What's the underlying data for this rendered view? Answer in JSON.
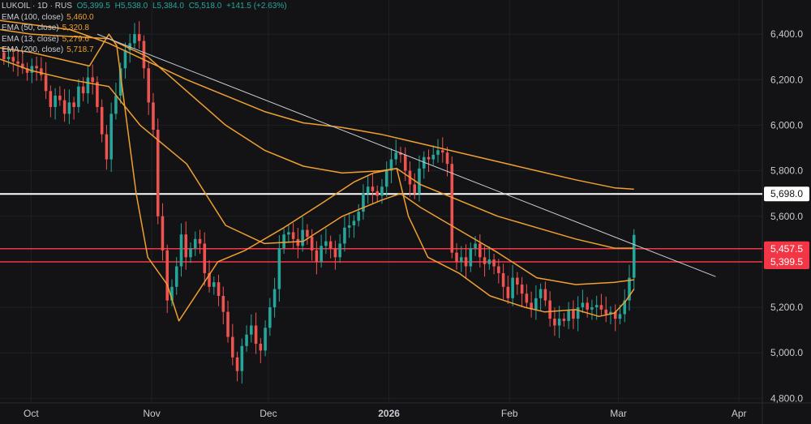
{
  "header": {
    "symbol_line": "LUKOIL · 1D · RUS",
    "open": "O5,399.5",
    "high": "H5,538.0",
    "low": "L5,384.0",
    "close": "C5,518.0",
    "change": "+141.5 (+2.63%)"
  },
  "indicators": [
    {
      "label": "EMA (100, close)",
      "value": "5,460.0",
      "color": "#f0a030"
    },
    {
      "label": "EMA (50, close)",
      "value": "5,320.8",
      "color": "#f0a030"
    },
    {
      "label": "EMA (13, close)",
      "value": "5,279.6",
      "color": "#f0a030"
    },
    {
      "label": "EMA (200, close)",
      "value": "5,718.7",
      "color": "#f0a030"
    }
  ],
  "colors": {
    "background": "#131316",
    "up": "#26a69a",
    "down": "#ef5350",
    "ema": "#f0a030",
    "level_line": "#ffffff",
    "red_level": "#f23645",
    "trendline": "#c8ccd6",
    "axis_text": "#c9cbd1"
  },
  "chart_data": {
    "type": "candlestick",
    "y_axis": {
      "ticks": [
        6400,
        6200,
        6000,
        5800,
        5600,
        5200,
        5000,
        4800
      ],
      "tick_labels": [
        "6,400.0",
        "6,200.0",
        "6,000.0",
        "5,800.0",
        "5,600.0",
        "5,200.0",
        "5,000.0",
        "4,800.0"
      ],
      "range": [
        4780,
        6550
      ]
    },
    "x_axis": {
      "labels": [
        "Oct",
        "Nov",
        "Dec",
        "2026",
        "Feb",
        "Mar",
        "Apr"
      ],
      "bold_labels": [
        "2026"
      ],
      "label_days": [
        0,
        31,
        61,
        92,
        123,
        151,
        182
      ],
      "day_range": [
        -8,
        188
      ]
    },
    "price_tags": [
      {
        "label": "5,698.0",
        "value": 5698.0,
        "style": "white"
      },
      {
        "label": "5,457.5",
        "value": 5457.5,
        "style": "red"
      },
      {
        "label": "5,399.5",
        "value": 5399.5,
        "style": "red"
      }
    ],
    "horizontal_levels": [
      {
        "value": 5698.0,
        "color": "white"
      },
      {
        "value": 5457.5,
        "color": "red"
      },
      {
        "value": 5399.5,
        "color": "red"
      }
    ],
    "trendline": {
      "x_days": [
        17,
        176
      ],
      "y": [
        6400,
        5335
      ]
    },
    "candles_close": [
      6290,
      6300,
      6280,
      6270,
      6250,
      6230,
      6260,
      6250,
      6220,
      6150,
      6080,
      6130,
      6110,
      6050,
      6100,
      6080,
      6170,
      6140,
      6210,
      6190,
      6080,
      5960,
      5850,
      6050,
      6130,
      6250,
      6330,
      6360,
      6400,
      6370,
      6250,
      6100,
      5980,
      5600,
      5450,
      5230,
      5290,
      5380,
      5520,
      5420,
      5460,
      5500,
      5480,
      5350,
      5290,
      5310,
      5250,
      5180,
      5070,
      4980,
      4920,
      5030,
      5080,
      5120,
      5040,
      5010,
      5110,
      5200,
      5280,
      5460,
      5520,
      5530,
      5500,
      5470,
      5540,
      5510,
      5450,
      5400,
      5470,
      5490,
      5460,
      5420,
      5480,
      5550,
      5560,
      5580,
      5620,
      5700,
      5730,
      5710,
      5690,
      5730,
      5800,
      5850,
      5880,
      5870,
      5800,
      5740,
      5700,
      5810,
      5860,
      5850,
      5870,
      5890,
      5880,
      5830,
      5440,
      5400,
      5420,
      5380,
      5460,
      5480,
      5420,
      5390,
      5410,
      5380,
      5350,
      5290,
      5240,
      5330,
      5300,
      5260,
      5220,
      5190,
      5240,
      5280,
      5230,
      5150,
      5120,
      5150,
      5140,
      5190,
      5150,
      5200,
      5220,
      5190,
      5200,
      5210,
      5190,
      5170,
      5180,
      5150,
      5170,
      5230,
      5330,
      5518
    ],
    "series": [
      {
        "name": "EMA (13, close)",
        "x_days": [
          -8,
          0,
          15,
          20,
          22,
          27,
          30,
          35,
          38,
          48,
          55,
          65,
          75,
          83,
          88,
          94,
          97,
          102,
          110,
          118,
          127,
          132,
          140,
          146,
          150,
          153,
          155
        ],
        "y": [
          6340,
          6320,
          6260,
          6400,
          6350,
          5700,
          5420,
          5300,
          5140,
          5400,
          5450,
          5550,
          5660,
          5750,
          5790,
          5810,
          5600,
          5420,
          5350,
          5250,
          5200,
          5180,
          5190,
          5160,
          5175,
          5230,
          5279.6
        ]
      },
      {
        "name": "EMA (50, close)",
        "x_days": [
          -8,
          0,
          10,
          20,
          28,
          40,
          50,
          60,
          70,
          80,
          90,
          95,
          100,
          110,
          120,
          130,
          140,
          150,
          155
        ],
        "y": [
          6290,
          6240,
          6200,
          6170,
          6000,
          5830,
          5560,
          5480,
          5490,
          5600,
          5670,
          5700,
          5640,
          5540,
          5440,
          5330,
          5300,
          5310,
          5320.8
        ]
      },
      {
        "name": "EMA (100, close)",
        "x_days": [
          -8,
          0,
          20,
          30,
          40,
          50,
          60,
          70,
          80,
          90,
          94,
          100,
          110,
          120,
          130,
          140,
          150,
          155
        ],
        "y": [
          6420,
          6400,
          6380,
          6300,
          6150,
          6000,
          5890,
          5820,
          5790,
          5800,
          5810,
          5740,
          5670,
          5600,
          5550,
          5500,
          5460,
          5460.0
        ]
      },
      {
        "name": "EMA (200, close)",
        "x_days": [
          -8,
          10,
          20,
          30,
          40,
          50,
          60,
          70,
          80,
          90,
          100,
          110,
          120,
          130,
          140,
          150,
          155
        ],
        "y": [
          6460,
          6420,
          6360,
          6280,
          6200,
          6130,
          6060,
          6010,
          5990,
          5960,
          5920,
          5880,
          5840,
          5800,
          5760,
          5725,
          5718.7
        ]
      }
    ]
  }
}
